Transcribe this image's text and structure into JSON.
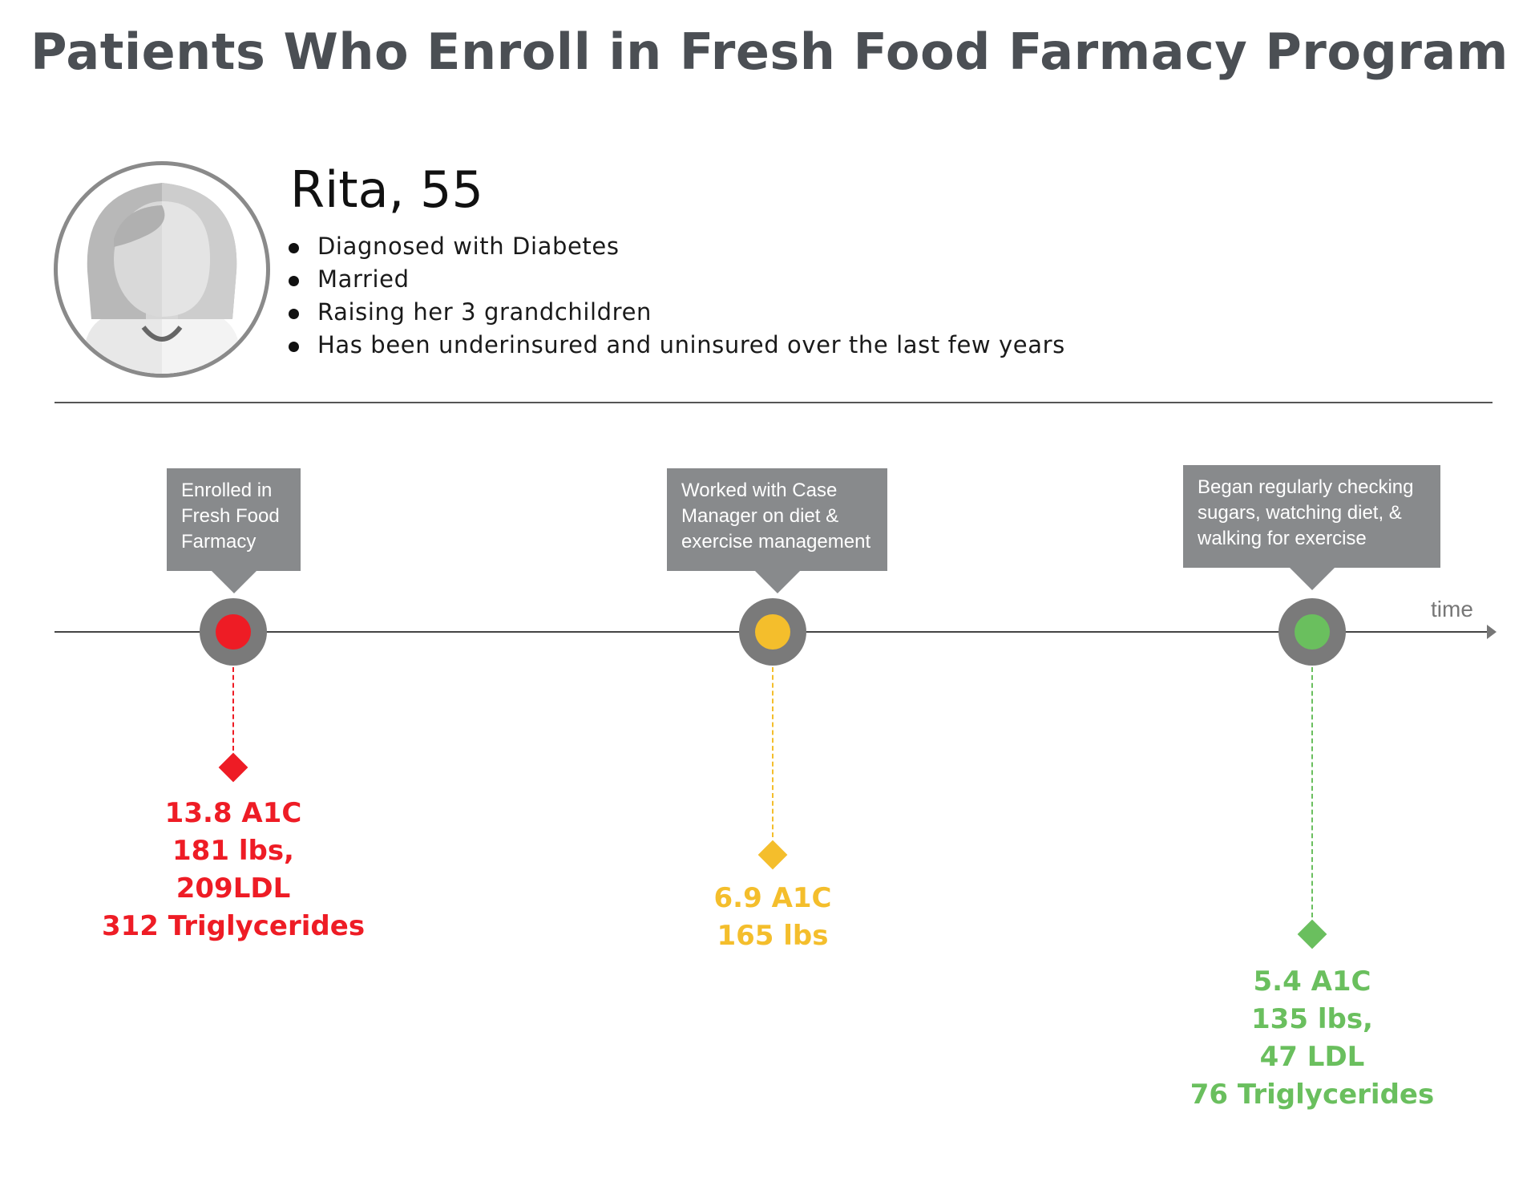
{
  "title": "Patients Who Enroll in Fresh Food Farmacy Program",
  "patient": {
    "name": "Rita, 55",
    "facts": [
      "Diagnosed with Diabetes",
      "Married",
      "Raising her 3 grandchildren",
      "Has been underinsured and uninsured over the last few years"
    ]
  },
  "timeline": {
    "axis_label": "time",
    "events": [
      {
        "callout": [
          "Enrolled in",
          "Fresh Food",
          "Farmacy"
        ],
        "metrics": [
          "13.8 A1C",
          "181 lbs,",
          "209LDL",
          "312 Triglycerides"
        ],
        "color": "#ee1c25"
      },
      {
        "callout": [
          "Worked with Case",
          "Manager on diet &",
          "exercise management"
        ],
        "metrics": [
          "6.9 A1C",
          "165 lbs"
        ],
        "color": "#f4be2c"
      },
      {
        "callout": [
          "Began regularly checking",
          "sugars, watching diet, &",
          "walking for exercise"
        ],
        "metrics": [
          "5.4 A1C",
          "135 lbs,",
          "47 LDL",
          "76 Triglycerides"
        ],
        "color": "#6abf5e"
      }
    ]
  },
  "colors": {
    "title": "#4b4f54",
    "callout_bg": "#888a8c",
    "node_ring": "#7a7a7a"
  },
  "icons": {
    "avatar": "woman-avatar-icon"
  }
}
